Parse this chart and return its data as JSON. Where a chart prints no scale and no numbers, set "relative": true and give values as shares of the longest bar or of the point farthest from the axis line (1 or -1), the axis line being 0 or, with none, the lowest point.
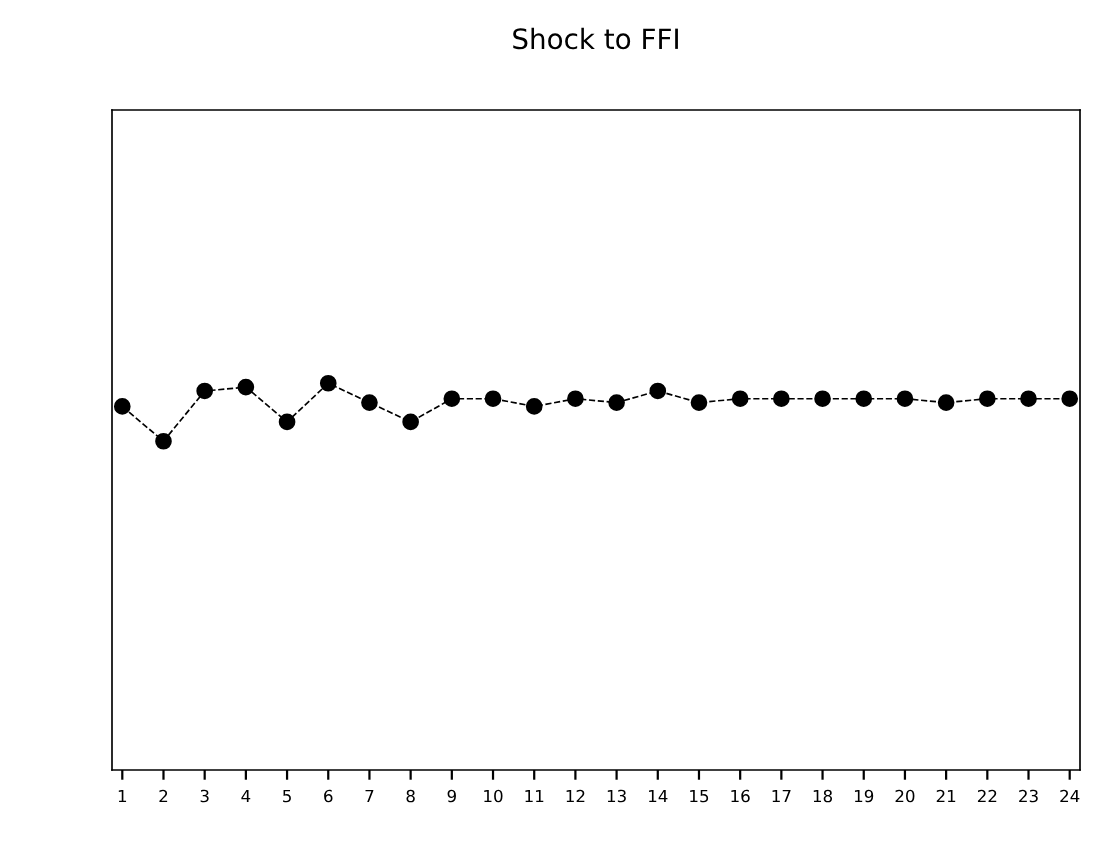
{
  "chart_data": {
    "type": "line",
    "title": "Shock to FFI",
    "relative": true,
    "categories": [
      "1",
      "2",
      "3",
      "4",
      "5",
      "6",
      "7",
      "8",
      "9",
      "10",
      "11",
      "12",
      "13",
      "14",
      "15",
      "16",
      "17",
      "18",
      "19",
      "20",
      "21",
      "22",
      "23",
      "24"
    ],
    "series": [
      {
        "color": "#000000",
        "values": [
          0.94,
          0.85,
          0.98,
          0.99,
          0.9,
          1,
          0.95,
          0.9,
          0.96,
          0.96,
          0.94,
          0.96,
          0.95,
          0.98,
          0.95,
          0.96,
          0.96,
          0.96,
          0.96,
          0.96,
          0.95,
          0.96,
          0.96,
          0.96
        ]
      }
    ],
    "marker": "circle",
    "line_style": "dashed",
    "grid": false,
    "legend": false
  }
}
